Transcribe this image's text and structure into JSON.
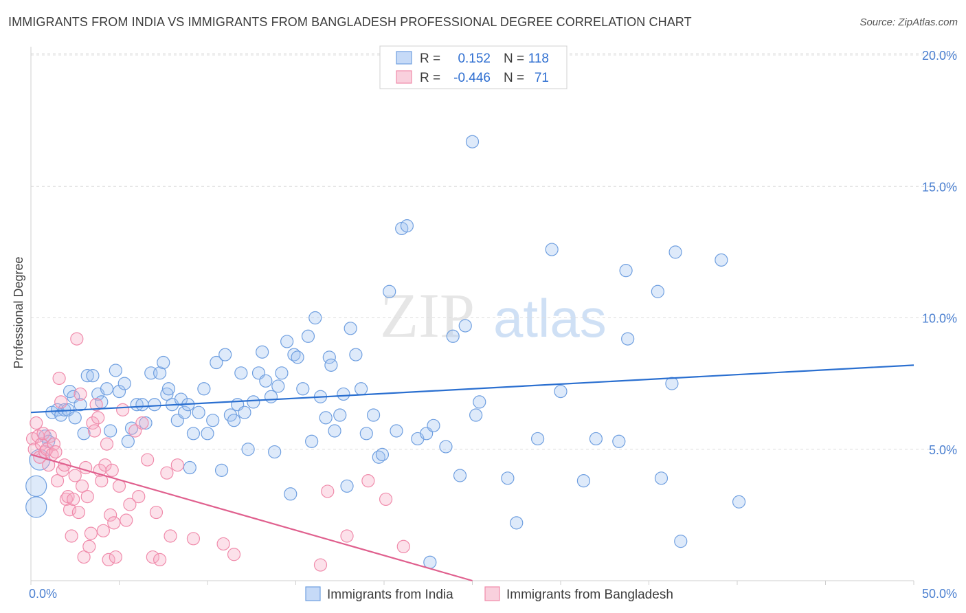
{
  "title": "IMMIGRANTS FROM INDIA VS IMMIGRANTS FROM BANGLADESH PROFESSIONAL DEGREE CORRELATION CHART",
  "source": "Source: ZipAtlas.com",
  "watermark": {
    "zip": "ZIP",
    "atlas": "atlas"
  },
  "colors": {
    "india": "#6f9fe0",
    "india_line": "#2a6fd0",
    "bangladesh": "#f08bab",
    "bangladesh_line": "#e0608e",
    "axis_text": "#4a7fd0"
  },
  "legend": {
    "r_label": "R =",
    "n_label": "N =",
    "rows": [
      {
        "series": "india",
        "r": "0.152",
        "n": "118"
      },
      {
        "series": "bangladesh",
        "r": "-0.446",
        "n": "71"
      }
    ]
  },
  "bottom_legend": [
    "Immigrants from India",
    "Immigrants from Bangladesh"
  ],
  "chart_data": {
    "type": "scatter",
    "title": "IMMIGRANTS FROM INDIA VS IMMIGRANTS FROM BANGLADESH PROFESSIONAL DEGREE CORRELATION CHART",
    "xlabel": "",
    "ylabel": "Professional Degree",
    "xlim": [
      0,
      50
    ],
    "ylim": [
      0,
      20
    ],
    "x_tick_labels": [
      "0.0%",
      "50.0%"
    ],
    "y_tick_labels": [
      "5.0%",
      "10.0%",
      "15.0%",
      "20.0%"
    ],
    "y_ticks": [
      5,
      10,
      15,
      20
    ],
    "series": [
      {
        "name": "Immigrants from India",
        "trend": {
          "x": [
            0,
            50
          ],
          "y": [
            6.4,
            8.2
          ]
        },
        "points": [
          [
            0.3,
            2.8
          ],
          [
            0.3,
            3.6
          ],
          [
            0.5,
            4.6
          ],
          [
            0.8,
            5.5
          ],
          [
            1.0,
            5.3
          ],
          [
            1.2,
            6.4
          ],
          [
            1.5,
            6.5
          ],
          [
            1.7,
            6.3
          ],
          [
            1.9,
            6.5
          ],
          [
            2.1,
            6.5
          ],
          [
            2.2,
            7.2
          ],
          [
            2.4,
            7.0
          ],
          [
            2.5,
            6.2
          ],
          [
            2.8,
            6.7
          ],
          [
            3.0,
            5.6
          ],
          [
            3.2,
            7.8
          ],
          [
            3.5,
            7.8
          ],
          [
            3.8,
            7.1
          ],
          [
            4.0,
            6.8
          ],
          [
            4.3,
            7.3
          ],
          [
            4.5,
            5.7
          ],
          [
            4.8,
            8.0
          ],
          [
            5.0,
            7.2
          ],
          [
            5.3,
            7.5
          ],
          [
            5.5,
            5.3
          ],
          [
            5.7,
            5.8
          ],
          [
            6.0,
            6.7
          ],
          [
            6.3,
            6.7
          ],
          [
            6.5,
            6.0
          ],
          [
            6.8,
            7.9
          ],
          [
            7.0,
            6.7
          ],
          [
            7.3,
            7.9
          ],
          [
            7.5,
            8.3
          ],
          [
            7.7,
            7.1
          ],
          [
            7.8,
            7.3
          ],
          [
            8.0,
            6.7
          ],
          [
            8.3,
            6.1
          ],
          [
            8.5,
            6.9
          ],
          [
            8.7,
            6.4
          ],
          [
            8.9,
            6.7
          ],
          [
            9.0,
            4.3
          ],
          [
            9.2,
            5.6
          ],
          [
            9.5,
            6.4
          ],
          [
            9.8,
            7.3
          ],
          [
            10.0,
            5.6
          ],
          [
            10.3,
            6.1
          ],
          [
            10.5,
            8.3
          ],
          [
            10.8,
            4.2
          ],
          [
            11.0,
            8.6
          ],
          [
            11.3,
            6.3
          ],
          [
            11.5,
            6.1
          ],
          [
            11.7,
            6.7
          ],
          [
            11.9,
            7.9
          ],
          [
            12.1,
            6.4
          ],
          [
            12.3,
            5.0
          ],
          [
            12.6,
            6.8
          ],
          [
            12.9,
            7.9
          ],
          [
            13.1,
            8.7
          ],
          [
            13.3,
            7.6
          ],
          [
            13.6,
            7.0
          ],
          [
            13.8,
            4.9
          ],
          [
            14.0,
            7.4
          ],
          [
            14.2,
            7.9
          ],
          [
            14.5,
            9.1
          ],
          [
            14.7,
            3.3
          ],
          [
            14.9,
            8.6
          ],
          [
            15.1,
            8.5
          ],
          [
            15.4,
            7.3
          ],
          [
            15.7,
            9.3
          ],
          [
            15.9,
            5.3
          ],
          [
            16.1,
            10.0
          ],
          [
            16.4,
            7.0
          ],
          [
            16.7,
            6.2
          ],
          [
            16.9,
            8.5
          ],
          [
            17.0,
            8.2
          ],
          [
            17.2,
            5.7
          ],
          [
            17.5,
            6.3
          ],
          [
            17.7,
            7.1
          ],
          [
            17.9,
            3.6
          ],
          [
            18.1,
            9.6
          ],
          [
            18.4,
            8.6
          ],
          [
            18.7,
            7.3
          ],
          [
            19.0,
            5.6
          ],
          [
            19.4,
            6.3
          ],
          [
            19.7,
            4.7
          ],
          [
            19.9,
            4.8
          ],
          [
            20.3,
            11.0
          ],
          [
            20.7,
            5.7
          ],
          [
            21.0,
            13.4
          ],
          [
            21.3,
            13.5
          ],
          [
            21.9,
            5.4
          ],
          [
            22.4,
            5.6
          ],
          [
            22.6,
            0.7
          ],
          [
            22.8,
            5.9
          ],
          [
            23.5,
            5.1
          ],
          [
            23.9,
            9.3
          ],
          [
            24.3,
            4.0
          ],
          [
            24.6,
            9.7
          ],
          [
            25.0,
            16.7
          ],
          [
            25.2,
            6.3
          ],
          [
            25.4,
            6.8
          ],
          [
            27.0,
            3.9
          ],
          [
            27.5,
            2.2
          ],
          [
            28.7,
            5.4
          ],
          [
            29.5,
            12.6
          ],
          [
            30.0,
            7.2
          ],
          [
            31.3,
            3.8
          ],
          [
            32.0,
            5.4
          ],
          [
            33.3,
            5.3
          ],
          [
            33.7,
            11.8
          ],
          [
            33.8,
            9.2
          ],
          [
            35.5,
            11.0
          ],
          [
            35.7,
            3.9
          ],
          [
            36.3,
            7.5
          ],
          [
            36.5,
            12.5
          ],
          [
            36.8,
            1.5
          ],
          [
            39.1,
            12.2
          ],
          [
            40.1,
            3.0
          ]
        ]
      },
      {
        "name": "Immigrants from Bangladesh",
        "trend": {
          "x": [
            0,
            25
          ],
          "y": [
            4.8,
            0.0
          ]
        },
        "points": [
          [
            0.1,
            5.4
          ],
          [
            0.2,
            5.0
          ],
          [
            0.3,
            6.0
          ],
          [
            0.4,
            5.5
          ],
          [
            0.5,
            4.7
          ],
          [
            0.6,
            5.2
          ],
          [
            0.7,
            5.6
          ],
          [
            0.8,
            4.9
          ],
          [
            0.9,
            5.0
          ],
          [
            1.0,
            4.4
          ],
          [
            1.1,
            5.5
          ],
          [
            1.2,
            4.8
          ],
          [
            1.3,
            5.2
          ],
          [
            1.4,
            4.9
          ],
          [
            1.5,
            3.8
          ],
          [
            1.6,
            7.7
          ],
          [
            1.7,
            6.8
          ],
          [
            1.8,
            4.2
          ],
          [
            1.9,
            4.4
          ],
          [
            2.0,
            3.1
          ],
          [
            2.1,
            3.2
          ],
          [
            2.2,
            2.7
          ],
          [
            2.3,
            1.7
          ],
          [
            2.4,
            3.1
          ],
          [
            2.5,
            4.0
          ],
          [
            2.6,
            9.2
          ],
          [
            2.7,
            2.6
          ],
          [
            2.8,
            7.1
          ],
          [
            2.9,
            3.6
          ],
          [
            3.0,
            0.9
          ],
          [
            3.1,
            4.3
          ],
          [
            3.2,
            3.2
          ],
          [
            3.3,
            1.3
          ],
          [
            3.4,
            1.8
          ],
          [
            3.5,
            6.0
          ],
          [
            3.6,
            5.7
          ],
          [
            3.7,
            6.7
          ],
          [
            3.8,
            6.2
          ],
          [
            3.9,
            4.2
          ],
          [
            4.0,
            3.8
          ],
          [
            4.1,
            1.9
          ],
          [
            4.2,
            4.4
          ],
          [
            4.3,
            5.2
          ],
          [
            4.4,
            0.8
          ],
          [
            4.5,
            2.5
          ],
          [
            4.6,
            4.2
          ],
          [
            4.7,
            2.2
          ],
          [
            4.8,
            0.9
          ],
          [
            5.0,
            3.6
          ],
          [
            5.2,
            6.5
          ],
          [
            5.4,
            2.3
          ],
          [
            5.6,
            2.9
          ],
          [
            5.9,
            5.7
          ],
          [
            6.1,
            3.2
          ],
          [
            6.3,
            6.0
          ],
          [
            6.6,
            4.6
          ],
          [
            6.9,
            0.9
          ],
          [
            7.1,
            2.6
          ],
          [
            7.3,
            0.8
          ],
          [
            7.7,
            4.1
          ],
          [
            7.9,
            1.7
          ],
          [
            8.3,
            4.4
          ],
          [
            9.2,
            1.6
          ],
          [
            10.9,
            1.4
          ],
          [
            11.5,
            1.0
          ],
          [
            16.4,
            0.6
          ],
          [
            16.8,
            3.4
          ],
          [
            17.9,
            1.7
          ],
          [
            19.1,
            3.8
          ],
          [
            20.1,
            3.1
          ],
          [
            21.1,
            1.3
          ]
        ]
      }
    ]
  }
}
